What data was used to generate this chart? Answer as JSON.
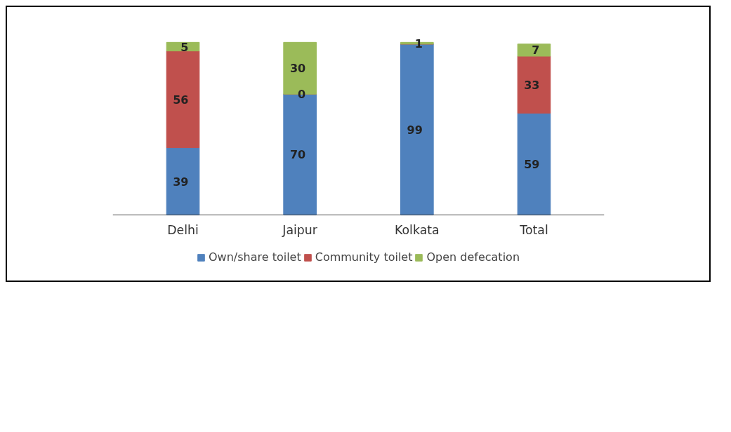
{
  "chart_data": {
    "type": "bar",
    "stacked": true,
    "categories": [
      "Delhi",
      "Jaipur",
      "Kolkata",
      "Total"
    ],
    "series": [
      {
        "name": "Own/share toilet",
        "color": "#4f81bd",
        "values": [
          39,
          70,
          99,
          59
        ],
        "value_labels": [
          "39",
          "70",
          "99",
          "59"
        ]
      },
      {
        "name": "Community toilet",
        "color": "#c0504d",
        "values": [
          56,
          0,
          0,
          33
        ],
        "value_labels": [
          "56",
          "0",
          null,
          "33"
        ]
      },
      {
        "name": "Open defecation",
        "color": "#9bbb59",
        "values": [
          5,
          30,
          1,
          7
        ],
        "value_labels": [
          "5",
          "30",
          "1",
          "7"
        ]
      }
    ],
    "legend": "bottom",
    "grid": false
  }
}
